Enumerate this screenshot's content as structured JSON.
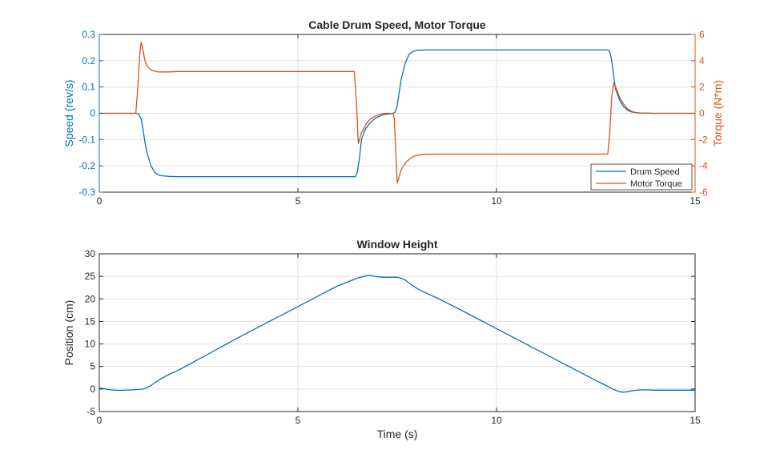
{
  "chart_data": [
    {
      "type": "line",
      "title": "Cable Drum Speed, Motor Torque",
      "xlabel": "",
      "ylabel": "Speed (rev/s)",
      "ylabel_right": "Torque (N*m)",
      "xlim": [
        0,
        15
      ],
      "ylim": [
        -0.3,
        0.3
      ],
      "ylim_right": [
        -6,
        6
      ],
      "xticks": [
        0,
        5,
        10,
        15
      ],
      "xtick_labels": [
        "0",
        "5",
        "10",
        "15"
      ],
      "yticks": [
        -0.3,
        -0.2,
        -0.1,
        0,
        0.1,
        0.2,
        0.3
      ],
      "ytick_labels": [
        "-0.3",
        "-0.2",
        "-0.1",
        "0",
        "0.1",
        "0.2",
        "0.3"
      ],
      "yticks_right": [
        -6,
        -4,
        -2,
        0,
        2,
        4,
        6
      ],
      "ytick_labels_right": [
        "-6",
        "-4",
        "-2",
        "0",
        "2",
        "4",
        "6"
      ],
      "grid": true,
      "legend_position": "bottom-right",
      "series": [
        {
          "name": "Drum Speed",
          "axis": "left",
          "color": "#0072BD",
          "x": [
            0,
            0.95,
            1.0,
            1.05,
            1.1,
            1.15,
            1.2,
            1.3,
            1.4,
            1.5,
            1.6,
            1.75,
            2.0,
            3,
            4,
            5,
            6,
            6.45,
            6.5,
            6.55,
            6.6,
            6.7,
            6.8,
            6.9,
            7.0,
            7.1,
            7.2,
            7.3,
            7.4,
            7.45,
            7.5,
            7.55,
            7.6,
            7.7,
            7.8,
            7.9,
            8.0,
            8.2,
            8.5,
            9,
            10,
            11,
            12,
            12.8,
            12.85,
            12.9,
            12.95,
            13.0,
            13.1,
            13.2,
            13.3,
            13.4,
            13.6,
            14,
            15
          ],
          "y": [
            0,
            0,
            -0.005,
            -0.02,
            -0.06,
            -0.11,
            -0.15,
            -0.2,
            -0.225,
            -0.235,
            -0.238,
            -0.24,
            -0.241,
            -0.241,
            -0.241,
            -0.241,
            -0.241,
            -0.241,
            -0.22,
            -0.17,
            -0.1,
            -0.06,
            -0.04,
            -0.025,
            -0.015,
            -0.008,
            -0.004,
            -0.002,
            0,
            0.005,
            0.03,
            0.08,
            0.13,
            0.19,
            0.225,
            0.235,
            0.24,
            0.241,
            0.241,
            0.241,
            0.241,
            0.241,
            0.241,
            0.241,
            0.235,
            0.2,
            0.14,
            0.09,
            0.05,
            0.025,
            0.012,
            0.005,
            0.001,
            0,
            0
          ]
        },
        {
          "name": "Motor Torque",
          "axis": "right",
          "color": "#D95319",
          "x": [
            0,
            0.92,
            0.97,
            1.02,
            1.05,
            1.1,
            1.15,
            1.2,
            1.3,
            1.4,
            1.5,
            1.6,
            1.75,
            2.0,
            3,
            4,
            5,
            6,
            6.42,
            6.48,
            6.52,
            6.55,
            6.6,
            6.7,
            6.8,
            6.9,
            7.0,
            7.1,
            7.2,
            7.3,
            7.35,
            7.4,
            7.43,
            7.45,
            7.5,
            7.55,
            7.6,
            7.7,
            7.8,
            7.9,
            8.0,
            8.2,
            8.5,
            9,
            10,
            11,
            12,
            12.8,
            12.85,
            12.9,
            12.95,
            13.0,
            13.05,
            13.1,
            13.2,
            13.3,
            13.4,
            13.5,
            13.6,
            13.8,
            14,
            15
          ],
          "y": [
            0,
            0,
            2.0,
            4.5,
            5.4,
            4.8,
            4.0,
            3.6,
            3.3,
            3.2,
            3.15,
            3.15,
            3.15,
            3.18,
            3.18,
            3.18,
            3.18,
            3.18,
            3.18,
            0.5,
            -2.3,
            -2.0,
            -1.5,
            -0.9,
            -0.5,
            -0.3,
            -0.15,
            -0.05,
            0,
            0,
            0,
            0,
            -0.5,
            -2.0,
            -5.3,
            -4.8,
            -4.3,
            -3.8,
            -3.5,
            -3.3,
            -3.2,
            -3.12,
            -3.1,
            -3.1,
            -3.1,
            -3.1,
            -3.1,
            -3.1,
            -1.5,
            1.2,
            2.3,
            2.0,
            1.6,
            1.2,
            0.7,
            0.35,
            0.15,
            0.06,
            0.02,
            0,
            0,
            0
          ]
        }
      ]
    },
    {
      "type": "line",
      "title": "Window Height",
      "xlabel": "Time (s)",
      "ylabel": "Position (cm)",
      "xlim": [
        0,
        15
      ],
      "ylim": [
        -5,
        30
      ],
      "xticks": [
        0,
        5,
        10,
        15
      ],
      "xtick_labels": [
        "0",
        "5",
        "10",
        "15"
      ],
      "yticks": [
        -5,
        0,
        5,
        10,
        15,
        20,
        25,
        30
      ],
      "ytick_labels": [
        "-5",
        "0",
        "5",
        "10",
        "15",
        "20",
        "25",
        "30"
      ],
      "grid": true,
      "series": [
        {
          "name": "Window Height",
          "color": "#0072BD",
          "x": [
            0,
            0.1,
            0.3,
            0.5,
            0.8,
            1.0,
            1.1,
            1.2,
            1.3,
            1.5,
            1.7,
            2.0,
            2.5,
            3,
            3.5,
            4,
            4.5,
            5,
            5.5,
            6,
            6.5,
            6.7,
            6.8,
            6.9,
            7.0,
            7.2,
            7.4,
            7.5,
            7.6,
            7.7,
            7.8,
            8.0,
            8.2,
            8.5,
            9,
            9.5,
            10,
            10.5,
            11,
            11.5,
            12,
            12.5,
            12.8,
            12.9,
            13.0,
            13.1,
            13.2,
            13.3,
            13.4,
            13.6,
            13.8,
            14,
            14.5,
            15
          ],
          "y": [
            0.2,
            0.1,
            -0.2,
            -0.3,
            -0.2,
            -0.1,
            0,
            0.3,
            0.8,
            2.0,
            3.0,
            4.2,
            6.6,
            9.0,
            11.4,
            13.7,
            16.0,
            18.3,
            20.6,
            22.9,
            24.6,
            25.1,
            25.2,
            25.1,
            24.9,
            24.8,
            24.8,
            24.8,
            24.6,
            24.2,
            23.5,
            22.3,
            21.4,
            20.2,
            18.0,
            15.7,
            13.4,
            11.1,
            8.8,
            6.5,
            4.2,
            1.9,
            0.6,
            0.1,
            -0.3,
            -0.6,
            -0.7,
            -0.6,
            -0.4,
            -0.2,
            -0.2,
            -0.25,
            -0.25,
            -0.25
          ]
        }
      ]
    }
  ]
}
